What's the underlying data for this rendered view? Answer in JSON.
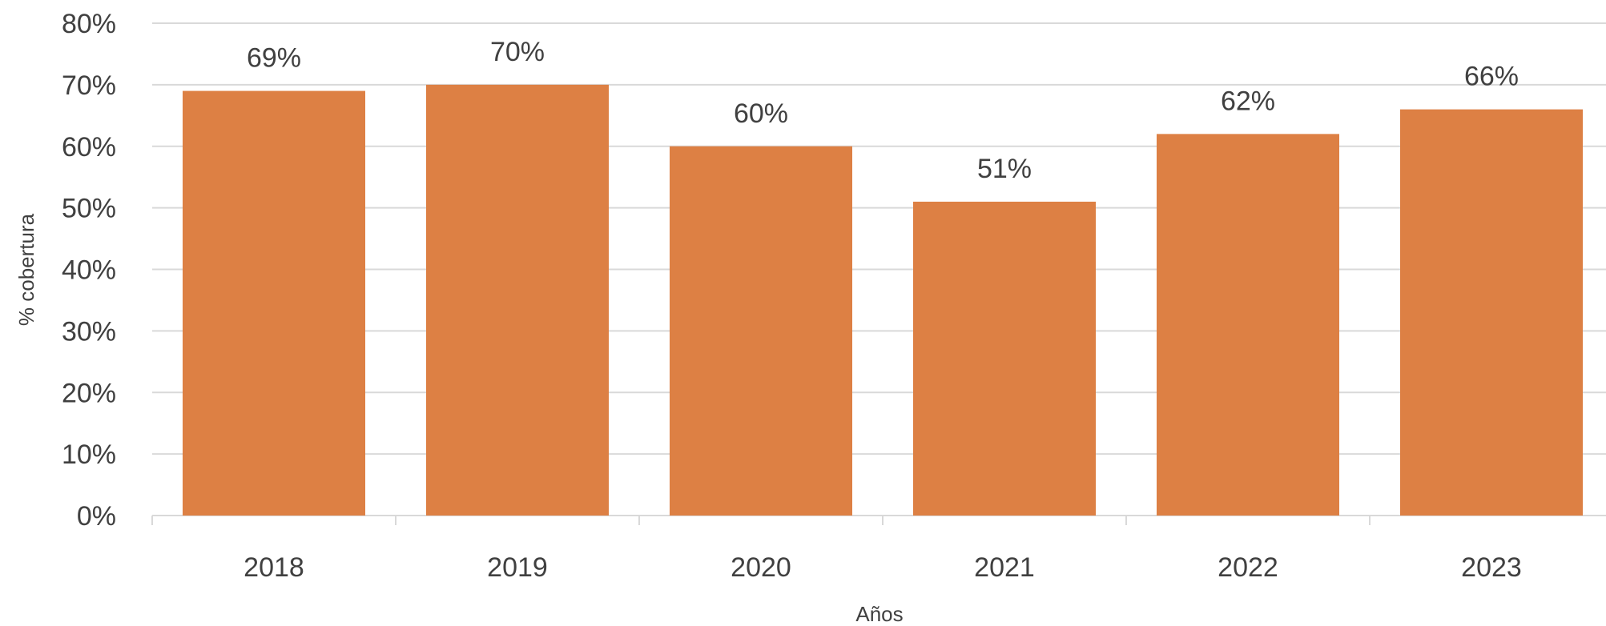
{
  "chart_data": {
    "type": "bar",
    "categories": [
      "2018",
      "2019",
      "2020",
      "2021",
      "2022",
      "2023"
    ],
    "values": [
      69,
      70,
      60,
      51,
      62,
      66
    ],
    "data_labels": [
      "69%",
      "70%",
      "60%",
      "51%",
      "62%",
      "66%"
    ],
    "title": "",
    "xlabel": "Años",
    "ylabel": "% cobertura",
    "ylim": [
      0,
      80
    ],
    "yticks": [
      0,
      10,
      20,
      30,
      40,
      50,
      60,
      70,
      80
    ],
    "ytick_labels": [
      "0%",
      "10%",
      "20%",
      "30%",
      "40%",
      "50%",
      "60%",
      "70%",
      "80%"
    ],
    "grid": true,
    "legend": "none",
    "colors": {
      "bar": "#DD8044",
      "grid": "#D9D9D9",
      "text": "#404040"
    }
  }
}
